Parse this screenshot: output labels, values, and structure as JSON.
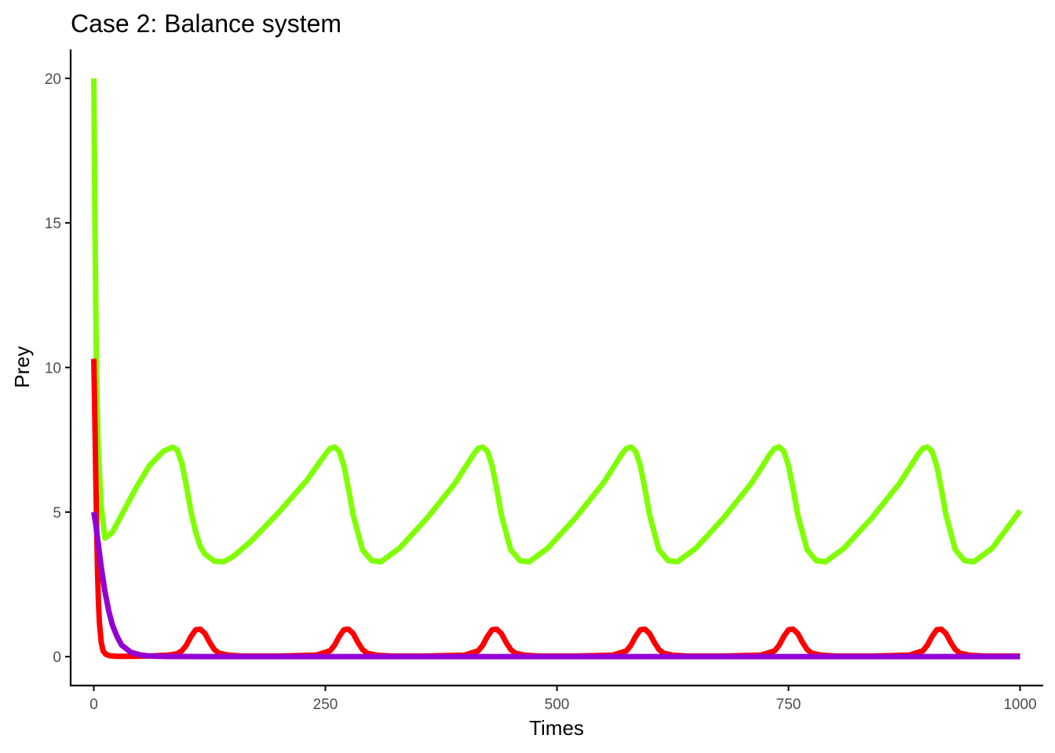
{
  "chart_data": {
    "type": "line",
    "title": "Case 2: Balance system",
    "xlabel": "Times",
    "ylabel": "Prey",
    "xlim": [
      -25,
      1025
    ],
    "ylim": [
      -1,
      21
    ],
    "x_ticks": [
      0,
      250,
      500,
      750,
      1000
    ],
    "y_ticks": [
      0,
      5,
      10,
      15,
      20
    ],
    "x_tick_labels": [
      "0",
      "250",
      "500",
      "750",
      "1000"
    ],
    "y_tick_labels": [
      "0",
      "5",
      "10",
      "15",
      "20"
    ],
    "grid": false,
    "legend": "none",
    "series": [
      {
        "color": "#7fff00",
        "x": [
          0,
          1,
          2,
          3,
          5,
          8,
          12,
          20,
          30,
          45,
          60,
          75,
          85,
          90,
          95,
          100,
          105,
          110,
          115,
          120,
          130,
          140,
          150,
          170,
          200,
          230,
          250,
          255,
          260,
          265,
          270,
          275,
          280,
          290,
          300,
          310,
          330,
          360,
          390,
          410,
          415,
          420,
          425,
          430,
          435,
          440,
          450,
          460,
          470,
          490,
          520,
          550,
          570,
          575,
          580,
          585,
          590,
          595,
          600,
          610,
          620,
          630,
          650,
          680,
          710,
          730,
          735,
          740,
          745,
          750,
          755,
          760,
          770,
          780,
          790,
          810,
          840,
          870,
          890,
          895,
          900,
          905,
          910,
          915,
          920,
          930,
          940,
          950,
          970,
          1000
        ],
        "y": [
          20,
          16,
          12.5,
          9.5,
          7.0,
          5.2,
          4.1,
          4.3,
          4.9,
          5.8,
          6.6,
          7.1,
          7.25,
          7.15,
          6.7,
          5.9,
          5.0,
          4.3,
          3.8,
          3.55,
          3.3,
          3.28,
          3.45,
          4.0,
          5.0,
          6.1,
          7.0,
          7.2,
          7.25,
          7.1,
          6.6,
          5.8,
          4.9,
          3.7,
          3.32,
          3.28,
          3.75,
          4.8,
          6.0,
          7.0,
          7.2,
          7.25,
          7.1,
          6.6,
          5.8,
          4.9,
          3.7,
          3.32,
          3.28,
          3.75,
          4.8,
          6.0,
          7.0,
          7.2,
          7.25,
          7.1,
          6.6,
          5.8,
          4.9,
          3.7,
          3.32,
          3.28,
          3.75,
          4.8,
          6.0,
          7.0,
          7.2,
          7.25,
          7.1,
          6.6,
          5.8,
          4.9,
          3.7,
          3.32,
          3.28,
          3.75,
          4.8,
          6.0,
          7.0,
          7.2,
          7.25,
          7.1,
          6.6,
          5.8,
          4.9,
          3.7,
          3.32,
          3.28,
          3.75,
          5.05
        ]
      },
      {
        "color": "#ff0000",
        "x": [
          0,
          1,
          2,
          3,
          4,
          5,
          6,
          8,
          10,
          13,
          17,
          25,
          40,
          60,
          80,
          90,
          95,
          100,
          105,
          110,
          115,
          120,
          125,
          130,
          135,
          145,
          160,
          200,
          240,
          255,
          260,
          265,
          270,
          275,
          280,
          285,
          290,
          295,
          305,
          320,
          360,
          400,
          415,
          420,
          425,
          430,
          435,
          440,
          445,
          450,
          455,
          465,
          480,
          520,
          560,
          575,
          580,
          585,
          590,
          595,
          600,
          605,
          610,
          615,
          625,
          640,
          680,
          720,
          735,
          740,
          745,
          750,
          755,
          760,
          765,
          770,
          775,
          785,
          800,
          840,
          880,
          895,
          900,
          905,
          910,
          915,
          920,
          925,
          930,
          935,
          945,
          960,
          1000
        ],
        "y": [
          10.3,
          8.5,
          6.5,
          4.6,
          3.0,
          1.9,
          1.2,
          0.5,
          0.2,
          0.08,
          0.03,
          0.01,
          0.01,
          0.02,
          0.05,
          0.1,
          0.2,
          0.4,
          0.7,
          0.93,
          0.95,
          0.8,
          0.5,
          0.25,
          0.12,
          0.05,
          0.02,
          0.02,
          0.05,
          0.2,
          0.4,
          0.7,
          0.93,
          0.95,
          0.8,
          0.5,
          0.25,
          0.12,
          0.05,
          0.02,
          0.02,
          0.05,
          0.2,
          0.4,
          0.7,
          0.93,
          0.95,
          0.8,
          0.5,
          0.25,
          0.12,
          0.05,
          0.02,
          0.02,
          0.05,
          0.2,
          0.4,
          0.7,
          0.93,
          0.95,
          0.8,
          0.5,
          0.25,
          0.12,
          0.05,
          0.02,
          0.02,
          0.05,
          0.2,
          0.4,
          0.7,
          0.93,
          0.95,
          0.8,
          0.5,
          0.25,
          0.12,
          0.05,
          0.02,
          0.02,
          0.05,
          0.2,
          0.4,
          0.7,
          0.93,
          0.95,
          0.8,
          0.5,
          0.25,
          0.12,
          0.05,
          0.02,
          0.02
        ]
      },
      {
        "color": "#9400d3",
        "x": [
          0,
          2,
          5,
          8,
          12,
          16,
          20,
          25,
          30,
          40,
          50,
          60,
          80,
          100,
          150,
          200,
          300,
          500,
          750,
          1000
        ],
        "y": [
          5.0,
          4.6,
          3.85,
          3.1,
          2.25,
          1.6,
          1.1,
          0.7,
          0.4,
          0.15,
          0.06,
          0.02,
          0.005,
          0.002,
          0.001,
          0.0,
          0.0,
          0.0,
          0.0,
          0.0
        ]
      }
    ]
  }
}
